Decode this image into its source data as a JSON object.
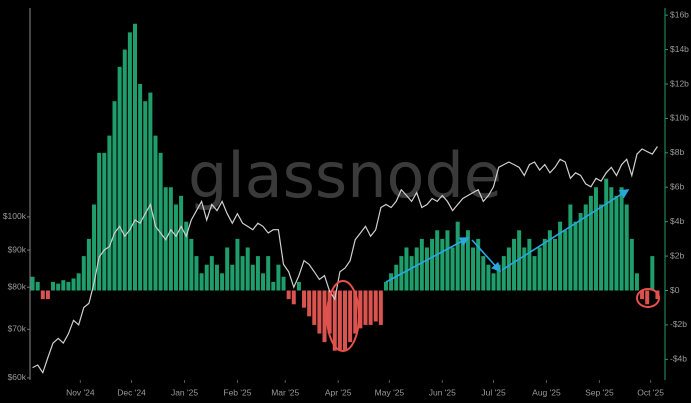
{
  "chart_data": {
    "type": "combo",
    "watermark": "glassnode",
    "xlim": [
      -0.5,
      122.5
    ],
    "xticks": [
      {
        "value": 9.33,
        "label": "Nov '24"
      },
      {
        "value": 19.33,
        "label": "Dec '24"
      },
      {
        "value": 29.67,
        "label": "Jan '25"
      },
      {
        "value": 40,
        "label": "Feb '25"
      },
      {
        "value": 49.33,
        "label": "Mar '25"
      },
      {
        "value": 59.67,
        "label": "Apr '25"
      },
      {
        "value": 69.67,
        "label": "May '25"
      },
      {
        "value": 80,
        "label": "Jun '25"
      },
      {
        "value": 90,
        "label": "Jul '25"
      },
      {
        "value": 100.33,
        "label": "Aug '25"
      },
      {
        "value": 110.67,
        "label": "Sep '25"
      },
      {
        "value": 120.67,
        "label": "Oct '25"
      }
    ],
    "ylim": [
      59600,
      192700
    ],
    "log_scale": true,
    "yticks": [
      {
        "value": 60000,
        "label": "$60k"
      },
      {
        "value": 70000,
        "label": "$70k"
      },
      {
        "value": 80000,
        "label": "$80k"
      },
      {
        "value": 90000,
        "label": "$90k"
      },
      {
        "value": 100000,
        "label": "$100k"
      }
    ],
    "y2lim": [
      -5.2,
      16.3
    ],
    "y2ticks": [
      {
        "value": -4,
        "label": "-$4b"
      },
      {
        "value": -2,
        "label": "-$2b"
      },
      {
        "value": 0,
        "label": "$0"
      },
      {
        "value": 2,
        "label": "$2b"
      },
      {
        "value": 4,
        "label": "$4b"
      },
      {
        "value": 6,
        "label": "$6b"
      },
      {
        "value": 8,
        "label": "$8b"
      },
      {
        "value": 10,
        "label": "$10b"
      },
      {
        "value": 12,
        "label": "$12b"
      },
      {
        "value": 14,
        "label": "$14b"
      },
      {
        "value": 16,
        "label": "$16b"
      }
    ],
    "series": [
      {
        "type": "bar",
        "axis": "y2",
        "color": "#1f9e6c",
        "negative_color": "#d9534f",
        "values": [
          0.8,
          0.5,
          -0.5,
          -0.5,
          0.5,
          0.4,
          0.6,
          0.5,
          0.7,
          1,
          2,
          3,
          5,
          8,
          8,
          9,
          11,
          13,
          14,
          15,
          15.5,
          12,
          11,
          11.5,
          9,
          8,
          6,
          6,
          5,
          5.5,
          4,
          3,
          2,
          1,
          1.5,
          2,
          1.5,
          1,
          2.5,
          1.5,
          3,
          2,
          2.5,
          1.5,
          2,
          1,
          2,
          0.5,
          1.5,
          0.8,
          -0.5,
          -0.8,
          0.5,
          -1,
          -1.5,
          -2,
          -2.5,
          -3,
          -2.5,
          -3.5,
          -3.5,
          -3.5,
          -3,
          -2.5,
          -2.2,
          -2,
          -2,
          -1.8,
          -2,
          0.5,
          1,
          1.5,
          2,
          2.5,
          2,
          2.5,
          3,
          2.5,
          3,
          3.5,
          3,
          3.5,
          2.5,
          4,
          3,
          3.5,
          2.5,
          3,
          2,
          1.5,
          1,
          1.5,
          2,
          2.5,
          3,
          3.5,
          2.5,
          3,
          2,
          2.5,
          3,
          3.5,
          3,
          4,
          3.5,
          5,
          4,
          4.5,
          5,
          5.5,
          6,
          5,
          6.5,
          6,
          5.5,
          6,
          5,
          3,
          1,
          -0.5,
          -0.8,
          2,
          -0.5
        ]
      },
      {
        "type": "line",
        "color": "#cfcfcf",
        "values": [
          62000,
          62500,
          61000,
          64000,
          67000,
          68000,
          67000,
          69000,
          72000,
          71000,
          75000,
          76000,
          81000,
          88000,
          90000,
          91000,
          95000,
          97000,
          94000,
          96000,
          99000,
          98000,
          101000,
          104000,
          97000,
          95000,
          93000,
          96000,
          94000,
          97000,
          94000,
          99000,
          102000,
          105000,
          99000,
          104000,
          102000,
          105000,
          101000,
          98000,
          101000,
          98000,
          97000,
          96000,
          98000,
          97000,
          95000,
          96000,
          96000,
          86000,
          84000,
          80000,
          83000,
          87000,
          86000,
          84000,
          82000,
          83000,
          79000,
          77000,
          84000,
          85000,
          87000,
          93000,
          95000,
          97000,
          94000,
          96000,
          103000,
          104000,
          103000,
          105000,
          109000,
          107000,
          105000,
          108000,
          103000,
          104000,
          106000,
          105000,
          107000,
          105000,
          102000,
          104000,
          106000,
          107000,
          108000,
          109000,
          105000,
          107000,
          110000,
          117000,
          118000,
          119000,
          118000,
          117000,
          114000,
          118000,
          119000,
          116000,
          118000,
          115000,
          117000,
          120000,
          119000,
          113000,
          115000,
          114000,
          111000,
          110000,
          113000,
          112000,
          115000,
          117000,
          114000,
          118000,
          120000,
          114000,
          122000,
          124000,
          123000,
          122000,
          125000
        ]
      }
    ]
  }
}
